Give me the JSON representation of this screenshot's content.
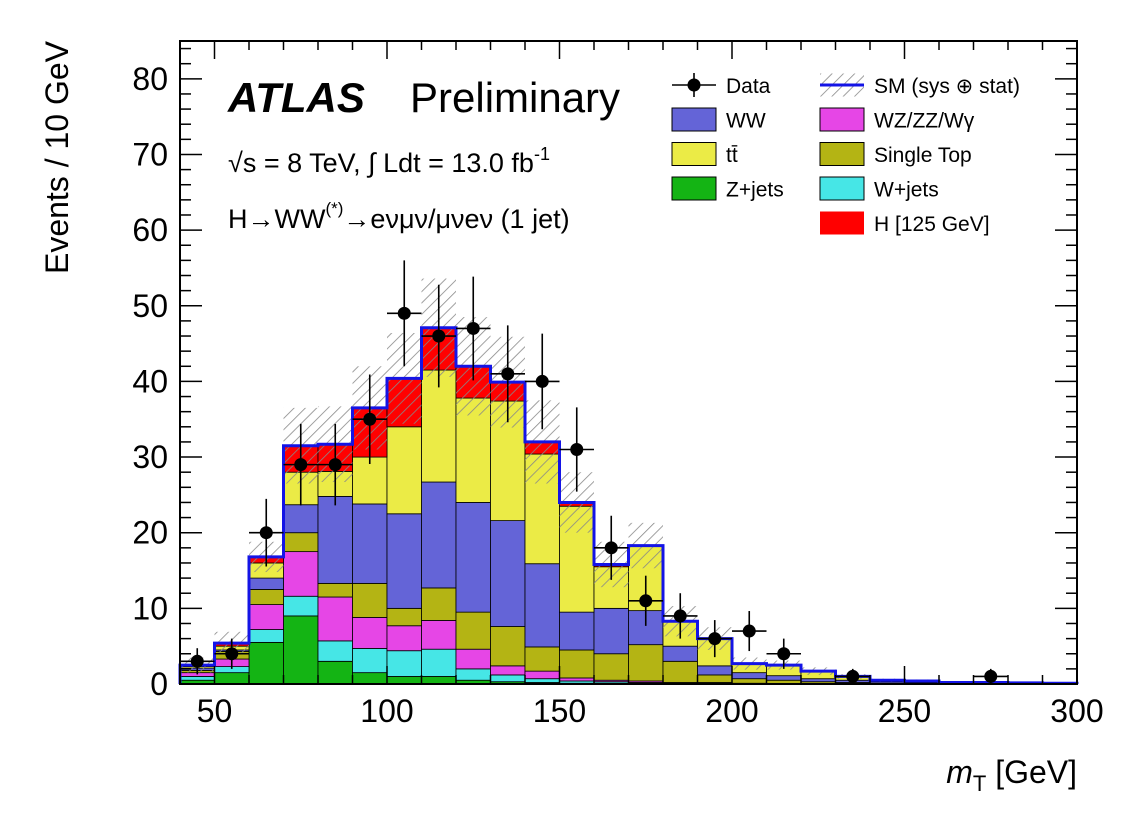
{
  "chart_data": {
    "type": "bar",
    "subtype": "stacked-histogram",
    "experiment": "ATLAS",
    "label": "Preliminary",
    "energy_text": "√s = 8 TeV, ∫ Ldt = 13.0 fb",
    "lumi_exponent": "-1",
    "channel_prefix": "H→WW",
    "channel_sup": "(*)",
    "channel_suffix": "→eνμν/μνeν (1 jet)",
    "xlabel_m": "m",
    "xlabel_sub": "T",
    "xlabel_unit": " [GeV]",
    "ylabel": "Events / 10 GeV",
    "xlim": [
      40,
      300
    ],
    "ylim": [
      0,
      85
    ],
    "x_ticks": [
      50,
      100,
      150,
      200,
      250,
      300
    ],
    "y_ticks": [
      0,
      10,
      20,
      30,
      40,
      50,
      60,
      70,
      80
    ],
    "bin_edges": [
      40,
      50,
      60,
      70,
      80,
      90,
      100,
      110,
      120,
      130,
      140,
      150,
      160,
      170,
      180,
      190,
      200,
      210,
      220,
      230,
      240,
      250,
      260,
      270,
      280,
      290,
      300
    ],
    "series": [
      {
        "name": "Z+jets",
        "color": "#14b414",
        "values": [
          0.5,
          1.5,
          5.5,
          9.0,
          3.0,
          1.5,
          1.0,
          1.0,
          0.5,
          0.3,
          0.2,
          0.1,
          0.1,
          0.1,
          0,
          0,
          0,
          0,
          0,
          0,
          0,
          0,
          0,
          0,
          0,
          0
        ]
      },
      {
        "name": "W+jets",
        "color": "#46e6e6",
        "values": [
          0.5,
          0.8,
          1.7,
          2.6,
          2.7,
          3.2,
          3.4,
          3.6,
          1.5,
          0.9,
          0.5,
          0.3,
          0.2,
          0.1,
          0.1,
          0.1,
          0,
          0,
          0,
          0,
          0,
          0,
          0,
          0,
          0,
          0
        ]
      },
      {
        "name": "WZ/ZZ/Wγ",
        "color": "#e646e6",
        "values": [
          0.5,
          1.0,
          3.3,
          5.9,
          5.8,
          4.1,
          3.3,
          3.8,
          2.6,
          1.2,
          1.0,
          0.4,
          0.2,
          0.2,
          0.1,
          0.1,
          0.1,
          0,
          0,
          0,
          0,
          0,
          0,
          0,
          0,
          0
        ]
      },
      {
        "name": "Single Top",
        "color": "#b4b414",
        "values": [
          0.3,
          1.0,
          2.0,
          2.5,
          1.8,
          4.5,
          2.3,
          4.3,
          4.9,
          5.2,
          3.2,
          3.7,
          3.5,
          4.8,
          2.8,
          1.0,
          0.6,
          0.5,
          0.3,
          0.2,
          0.1,
          0.1,
          0,
          0,
          0,
          0
        ]
      },
      {
        "name": "WW",
        "color": "#6464d7",
        "values": [
          0.3,
          0.2,
          1.5,
          3.7,
          11.5,
          10.5,
          12.5,
          14.0,
          14.5,
          14.0,
          11.0,
          5.0,
          6.0,
          4.5,
          2.0,
          1.2,
          0.8,
          0.6,
          0.4,
          0.3,
          0.2,
          0.1,
          0.1,
          0.1,
          0.05,
          0.05
        ]
      },
      {
        "name": "tt̄",
        "color": "#ebeb46",
        "values": [
          0.2,
          0.5,
          2.0,
          4.3,
          3.3,
          6.2,
          11.5,
          14.8,
          13.8,
          15.8,
          14.5,
          14.0,
          5.5,
          8.5,
          3.2,
          3.6,
          1.2,
          1.4,
          1.0,
          0.5,
          0.2,
          0.2,
          0.1,
          0.1,
          0.1,
          0.05
        ]
      },
      {
        "name": "H [125 GeV]",
        "color": "#ff0000",
        "values": [
          0.2,
          0.4,
          0.8,
          3.5,
          3.6,
          6.5,
          6.4,
          5.6,
          4.2,
          2.5,
          1.6,
          0.5,
          0.3,
          0.1,
          0.1,
          0,
          0,
          0,
          0,
          0,
          0,
          0,
          0,
          0,
          0,
          0
        ]
      }
    ],
    "sm_total_error": [
      1.0,
      1.5,
      2.0,
      5.0,
      5.0,
      5.5,
      6.0,
      6.5,
      6.5,
      6.0,
      5.5,
      4.0,
      3.0,
      3.0,
      2.0,
      1.5,
      0.8,
      0.6,
      0.5,
      0.3,
      0.2,
      0.2,
      0.1,
      0.1,
      0.1,
      0.1
    ],
    "data": {
      "name": "Data",
      "x": [
        45,
        55,
        65,
        75,
        85,
        95,
        105,
        115,
        125,
        135,
        145,
        155,
        165,
        175,
        185,
        195,
        205,
        215,
        235,
        275
      ],
      "y": [
        3,
        4,
        20,
        29,
        29,
        35,
        49,
        46,
        47,
        41,
        40,
        31,
        18,
        11,
        9,
        6,
        7,
        4,
        1,
        1
      ]
    },
    "legend": {
      "position": "top-right",
      "entries": [
        {
          "label": "Data",
          "style": "marker"
        },
        {
          "label": "SM (sys ⊕ stat)",
          "style": "hatch"
        },
        {
          "label": "WW",
          "style": "box",
          "color": "#6464d7"
        },
        {
          "label": "WZ/ZZ/Wγ",
          "style": "box",
          "color": "#e646e6"
        },
        {
          "label": "tt̄",
          "style": "box",
          "color": "#ebeb46"
        },
        {
          "label": "Single Top",
          "style": "box",
          "color": "#b4b414"
        },
        {
          "label": "Z+jets",
          "style": "box",
          "color": "#14b414"
        },
        {
          "label": "W+jets",
          "style": "box",
          "color": "#46e6e6"
        },
        {
          "label": "",
          "style": "blank"
        },
        {
          "label": "H [125 GeV]",
          "style": "box",
          "color": "#ff0000"
        }
      ]
    },
    "sm_line_color": "#1414e6"
  }
}
